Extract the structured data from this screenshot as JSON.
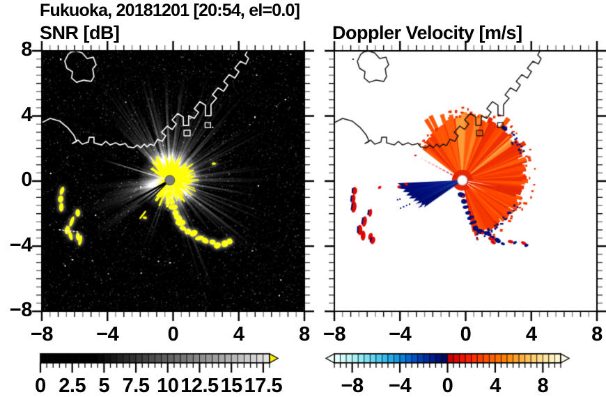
{
  "figure": {
    "title": "Fukuoka, 20181201 [20:54, el=0.0]"
  },
  "panels": {
    "snr": {
      "title": "SNR [dB]"
    },
    "vel": {
      "title": "Doppler Velocity [m/s]"
    }
  },
  "axes": {
    "xlim": [
      -8,
      8
    ],
    "ylim": [
      -8,
      8
    ],
    "xtick_values": [
      -8,
      -4,
      0,
      4,
      8
    ],
    "xtick_labels": [
      "−8",
      "−4",
      "0",
      "4",
      "8"
    ],
    "ytick_values": [
      8,
      4,
      0,
      -4,
      -8
    ],
    "ytick_labels": [
      "8",
      "4",
      "0",
      "−4",
      "−8"
    ],
    "minor_step": 0.5,
    "major_step": 4
  },
  "colorbars": {
    "snr": {
      "range": [
        0,
        18
      ],
      "tick_values": [
        0,
        2.5,
        5,
        7.5,
        10,
        12.5,
        15,
        17.5
      ],
      "tick_labels": [
        "0",
        "2.5",
        "5",
        "7.5",
        "10",
        "12.5",
        "15",
        "17.5"
      ],
      "minor_step": 0.5,
      "major_step": 2.5,
      "style": "segmented grayscale, black below ~5 dB ramping to white",
      "overflow_arrow_color": "#FFEE00"
    },
    "vel": {
      "range": [
        -9.5,
        9.5
      ],
      "tick_values": [
        -8,
        -4,
        0,
        4,
        8
      ],
      "tick_labels": [
        "−8",
        "−4",
        "0",
        "4",
        "8"
      ],
      "minor_step": 0.5,
      "major_step": 4,
      "neg_colors": [
        "#E8FFFF",
        "#D4FBFB",
        "#C0F6F8",
        "#AAF0F6",
        "#93E9F4",
        "#7CE0F2",
        "#64D5F0",
        "#4DC8EE",
        "#38BAEC",
        "#26AAE8",
        "#1697E2",
        "#0A82DA",
        "#0369D0",
        "#0052C2",
        "#003FB2",
        "#002EA0",
        "#001F8C",
        "#001278",
        "#000A62"
      ],
      "pos_colors": [
        "#C80000",
        "#DC0800",
        "#F01400",
        "#FC2000",
        "#FF3000",
        "#FF4000",
        "#FF5000",
        "#FF6000",
        "#FF7000",
        "#FF8000",
        "#FF9010",
        "#FFA028",
        "#FFB040",
        "#FFC058",
        "#FFCE70",
        "#FFDA88",
        "#FFE6A0",
        "#FFEFB8",
        "#FFF7D0"
      ],
      "underflow_arrow_color": "#F0FFFF",
      "overflow_arrow_color": "#FFFBE2"
    }
  },
  "palette": {
    "snr_echo": "#FFFF00",
    "snr_bg": "#000000",
    "coast_snr": "#FFFFFF",
    "coast_vel": "#161616",
    "fan_colors": [
      "#E62A00",
      "#F53800",
      "#FF4600",
      "#FF5404",
      "#F03000",
      "#FF5E0C"
    ],
    "fan_streaks": [
      "#FF8526",
      "#FF9E3A"
    ],
    "wedge_base": "#000C78",
    "navy": "#001078",
    "red": "#DE0800",
    "center_dot_snr": "#7B7B7B",
    "center_dot_vel": "#FFFFFF"
  },
  "geo": {
    "coast_main": [
      [
        -8,
        3.59
      ],
      [
        -7.49,
        3.85
      ],
      [
        -6.9,
        3.68
      ],
      [
        -6.43,
        3.29
      ],
      [
        -6.05,
        2.82
      ],
      [
        -5.88,
        2.44
      ],
      [
        -6.13,
        2.31
      ],
      [
        -5.79,
        2.52
      ],
      [
        -5.54,
        2.27
      ],
      [
        -5.16,
        2.4
      ],
      [
        -5.11,
        2.69
      ],
      [
        -4.82,
        2.69
      ],
      [
        -4.82,
        2.35
      ],
      [
        -4.35,
        2.22
      ],
      [
        -4.1,
        2.44
      ],
      [
        -3.84,
        2.22
      ],
      [
        -3.5,
        2.35
      ],
      [
        -3.25,
        2.22
      ],
      [
        -2.91,
        2.31
      ],
      [
        -2.74,
        2.1
      ],
      [
        -2.4,
        2.05
      ],
      [
        -2.19,
        2.22
      ],
      [
        -1.97,
        2.05
      ],
      [
        -1.76,
        2.27
      ],
      [
        -1.59,
        2.1
      ],
      [
        -1.38,
        2.27
      ],
      [
        -1.17,
        2.18
      ],
      [
        -0.95,
        2.57
      ],
      [
        -0.66,
        2.44
      ],
      [
        -0.45,
        2.78
      ],
      [
        -0.7,
        2.99
      ],
      [
        -0.36,
        3.38
      ],
      [
        -0.06,
        3.17
      ],
      [
        0.19,
        3.51
      ],
      [
        -0.06,
        3.76
      ],
      [
        0.28,
        4.15
      ],
      [
        0.62,
        3.94
      ],
      [
        0.62,
        3.42
      ],
      [
        0.95,
        3.42
      ],
      [
        0.95,
        4.02
      ],
      [
        1.29,
        3.85
      ],
      [
        1.55,
        4.23
      ],
      [
        1.29,
        4.45
      ],
      [
        1.63,
        4.88
      ],
      [
        1.97,
        4.66
      ],
      [
        1.97,
        4.02
      ],
      [
        2.31,
        4.02
      ],
      [
        2.31,
        4.7
      ],
      [
        2.65,
        5.09
      ],
      [
        2.4,
        5.3
      ],
      [
        2.74,
        5.73
      ],
      [
        3.08,
        5.52
      ],
      [
        3.33,
        5.9
      ],
      [
        3.08,
        6.12
      ],
      [
        3.42,
        6.54
      ],
      [
        3.76,
        6.33
      ],
      [
        4.01,
        6.72
      ],
      [
        3.76,
        6.93
      ],
      [
        4.1,
        7.36
      ],
      [
        4.43,
        7.19
      ],
      [
        4.6,
        7.53
      ],
      [
        4.39,
        7.74
      ],
      [
        4.56,
        8.05
      ]
    ],
    "island": [
      [
        -6.39,
        7.79
      ],
      [
        -6.6,
        7.36
      ],
      [
        -6.47,
        6.93
      ],
      [
        -6.13,
        6.72
      ],
      [
        -6.18,
        6.33
      ],
      [
        -5.88,
        6.07
      ],
      [
        -5.45,
        6.2
      ],
      [
        -4.99,
        6.12
      ],
      [
        -4.82,
        6.42
      ],
      [
        -4.9,
        6.89
      ],
      [
        -4.69,
        7.14
      ],
      [
        -4.86,
        7.61
      ],
      [
        -5.24,
        7.53
      ],
      [
        -5.54,
        7.87
      ],
      [
        -5.92,
        7.99
      ],
      [
        -6.22,
        7.92
      ],
      [
        -6.39,
        7.79
      ]
    ],
    "island_dot": [
      -6.9,
      7.53
    ],
    "piers": [
      [
        [
          0.66,
          3.12
        ],
        [
          1.04,
          3.12
        ],
        [
          1.04,
          2.78
        ],
        [
          0.66,
          2.78
        ],
        [
          0.66,
          3.12
        ]
      ],
      [
        [
          1.95,
          3.6
        ],
        [
          2.28,
          3.6
        ],
        [
          2.28,
          3.28
        ],
        [
          1.95,
          3.28
        ],
        [
          1.95,
          3.6
        ]
      ]
    ],
    "dash_segment": [
      [
        -6.94,
        -2.99
      ],
      [
        -5.79,
        -3.12
      ]
    ]
  },
  "chart_data": [
    {
      "type": "heatmap",
      "subtype": "radar-ppi",
      "title": "SNR [dB]",
      "units": "dB",
      "xlim": [
        -8,
        8
      ],
      "ylim": [
        -8,
        8
      ],
      "value_range": [
        0,
        18
      ],
      "radar_site": [
        -0.2,
        0.05
      ],
      "ray_sector_deg": [
        -78,
        140
      ],
      "west_beam_sector_deg": [
        183,
        220
      ],
      "south_sparse_sector_deg": [
        -112,
        -78
      ],
      "thin_west_rays_deg": [
        157,
        163,
        168
      ],
      "black_cut_rays_deg": [
        209,
        217,
        225
      ],
      "yellow_dash_ray_deg": 232,
      "echo_chain_main": [
        [
          -0.2,
          -0.55
        ],
        [
          -0.25,
          -0.85
        ],
        [
          -0.1,
          -1.25
        ],
        [
          0,
          -1.6
        ],
        [
          0.15,
          -1.95
        ],
        [
          0.3,
          -2.25
        ],
        [
          0.45,
          -2.55
        ],
        [
          0.6,
          -2.9
        ],
        [
          0.9,
          -3.1
        ],
        [
          1.25,
          -3.2
        ],
        [
          1.6,
          -3.5
        ],
        [
          1.95,
          -3.65
        ],
        [
          2.4,
          -3.75
        ],
        [
          2.7,
          -3.95
        ],
        [
          3.15,
          -3.85
        ],
        [
          3.45,
          -3.7
        ]
      ],
      "echo_west_patches": [
        [
          -6.77,
          -0.6
        ],
        [
          -6.85,
          -1.1
        ],
        [
          -6.81,
          -1.6
        ],
        [
          -5.81,
          -1.95
        ],
        [
          -6.45,
          -3.0
        ],
        [
          -6.25,
          -3.35
        ],
        [
          -5.8,
          -3.4
        ],
        [
          -5.66,
          -3.64
        ],
        [
          -6.17,
          -2.48
        ]
      ],
      "echo_small": [
        [
          2.48,
          1.07
        ],
        [
          -1.72,
          -2.25
        ]
      ],
      "specks_white": [
        [
          6.8,
          5.05
        ],
        [
          1.02,
          3.9
        ]
      ]
    },
    {
      "type": "heatmap",
      "subtype": "radar-ppi",
      "title": "Doppler Velocity [m/s]",
      "units": "m/s",
      "xlim": [
        -8,
        8
      ],
      "ylim": [
        -8,
        8
      ],
      "value_range": [
        -9.5,
        9.5
      ],
      "radar_site": [
        -0.2,
        0.05
      ],
      "outbound_fan": {
        "azimuth_deg": [
          -78,
          140
        ],
        "radius_profile": [
          [
            -78,
            3.35
          ],
          [
            -45,
            3.35
          ],
          [
            15,
            3.85
          ],
          [
            65,
            4.0
          ],
          [
            100,
            3.8
          ],
          [
            122,
            3.2
          ],
          [
            140,
            2.85
          ]
        ],
        "velocity_desc": "+2 to +7 m/s, red-orange"
      },
      "inbound_wedge": {
        "edge_pts": [
          [
            182.5,
            3.95
          ],
          [
            185,
            3.75
          ],
          [
            187,
            3.95
          ],
          [
            189,
            3.5
          ],
          [
            191,
            3.7
          ],
          [
            193,
            3.3
          ],
          [
            195,
            3.55
          ],
          [
            197,
            3.2
          ],
          [
            199,
            3.45
          ],
          [
            201,
            3.0
          ],
          [
            203,
            3.25
          ],
          [
            205,
            2.9
          ],
          [
            207,
            3.05
          ],
          [
            209,
            2.8
          ],
          [
            211,
            2.95
          ],
          [
            213,
            2.7
          ],
          [
            215.5,
            2.85
          ]
        ],
        "velocity_desc": "-6 to -10 m/s, navy"
      },
      "thin_red_ray_deg": 152,
      "white_gap_rays_deg": [
        -10,
        -26,
        -40
      ],
      "west_patches": [
        [
          -6.77,
          -0.6
        ],
        [
          -6.85,
          -1.1
        ],
        [
          -6.81,
          -1.6
        ],
        [
          -5.81,
          -1.95
        ],
        [
          -6.45,
          -3.0
        ],
        [
          -6.25,
          -3.35
        ],
        [
          -5.8,
          -3.4
        ],
        [
          -5.66,
          -3.64
        ],
        [
          -6.17,
          -2.48
        ]
      ],
      "wedge_tip_red": [
        [
          -4.05,
          -0.34
        ],
        [
          -5.24,
          -0.39
        ],
        [
          -3.62,
          -0.2
        ]
      ],
      "bottom_patches": [
        [
          1.45,
          -3.3,
          "n"
        ],
        [
          1.55,
          -3.55,
          "r"
        ],
        [
          1.68,
          -3.76,
          "r"
        ],
        [
          2.27,
          -3.85,
          "n"
        ],
        [
          2.74,
          -3.72,
          "r"
        ],
        [
          3.0,
          -3.78,
          "n"
        ],
        [
          3.54,
          -3.81,
          "r"
        ],
        [
          3.7,
          -3.95,
          "n"
        ]
      ],
      "fringe_chain": [
        [
          -0.25,
          -0.85
        ],
        [
          -0.1,
          -1.25
        ],
        [
          0,
          -1.6
        ],
        [
          0.15,
          -1.95
        ],
        [
          0.3,
          -2.25
        ],
        [
          0.45,
          -2.55
        ],
        [
          0.6,
          -2.9
        ],
        [
          0.9,
          -3.1
        ],
        [
          1.25,
          -3.2
        ],
        [
          1.6,
          -3.5
        ],
        [
          1.95,
          -3.65
        ]
      ]
    }
  ]
}
